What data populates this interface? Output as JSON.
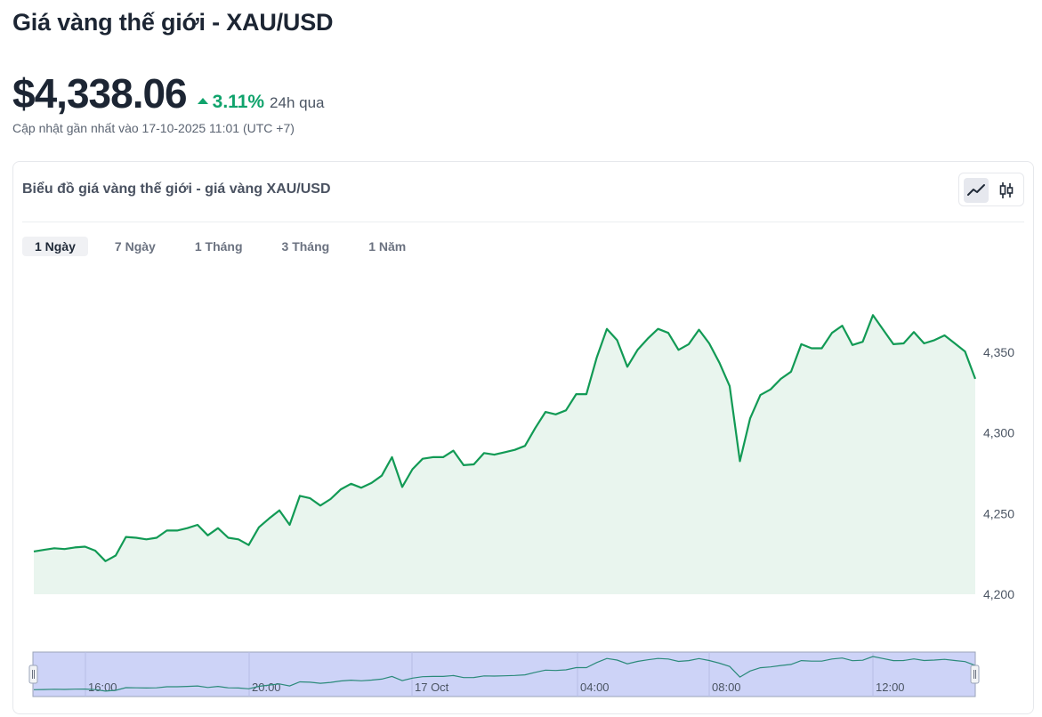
{
  "header": {
    "title": "Giá vàng thế giới - XAU/USD",
    "price": "$4,338.06",
    "change_pct": "3.11%",
    "change_period": "24h qua",
    "updated": "Cập nhật gần nhất vào 17-10-2025 11:01 (UTC +7)"
  },
  "card": {
    "title": "Biểu đồ giá vàng thế giới - giá vàng XAU/USD",
    "chart_types": [
      {
        "icon": "line-chart-icon",
        "active": true
      },
      {
        "icon": "candlestick-icon",
        "active": false
      }
    ],
    "tabs": [
      {
        "label": "1 Ngày",
        "active": true
      },
      {
        "label": "7 Ngày",
        "active": false
      },
      {
        "label": "1 Tháng",
        "active": false
      },
      {
        "label": "3 Tháng",
        "active": false
      },
      {
        "label": "1 Năm",
        "active": false
      }
    ]
  },
  "colors": {
    "up": "#10a36c",
    "line": "#129a55",
    "area": "#e9f5ee",
    "navigator_fill": "#cdd3f7",
    "navigator_border": "#9aa3b8"
  },
  "chart_data": {
    "type": "area",
    "y_ticks": [
      "4,350",
      "4,300",
      "4,250",
      "4,200"
    ],
    "ylim": [
      4200,
      4375
    ],
    "navigator_labels": [
      "16:00",
      "20:00",
      "17 Oct",
      "04:00",
      "08:00",
      "12:00"
    ],
    "series": [
      {
        "values": [
          4226.5,
          4227.5,
          4228.5,
          4228,
          4229,
          4229.5,
          4227,
          4220.5,
          4224,
          4235.5,
          4235,
          4234,
          4235,
          4239.5,
          4239.5,
          4241,
          4243,
          4236.5,
          4241,
          4235,
          4234,
          4230.5,
          4241.5,
          4247,
          4252,
          4243,
          4261,
          4259.5,
          4255,
          4259,
          4265,
          4268.5,
          4266,
          4269,
          4273.5,
          4285,
          4266.5,
          4277.5,
          4284,
          4285,
          4285,
          4289,
          4280,
          4280.5,
          4287.5,
          4286.5,
          4288,
          4289.5,
          4292,
          4303,
          4313,
          4311.5,
          4314,
          4324,
          4324,
          4346.5,
          4364.5,
          4357.5,
          4341,
          4351.5,
          4358.5,
          4364.5,
          4362,
          4351.5,
          4355,
          4364,
          4355.5,
          4343.5,
          4329,
          4282.5,
          4309,
          4323.5,
          4327,
          4333.5,
          4338,
          4355,
          4352.5,
          4352.5,
          4362,
          4366.5,
          4354.5,
          4356.5,
          4373,
          4364,
          4355,
          4355.5,
          4362.5,
          4355.5,
          4357.5,
          4360.5,
          4355.5,
          4350.5,
          4333.5
        ]
      }
    ]
  }
}
